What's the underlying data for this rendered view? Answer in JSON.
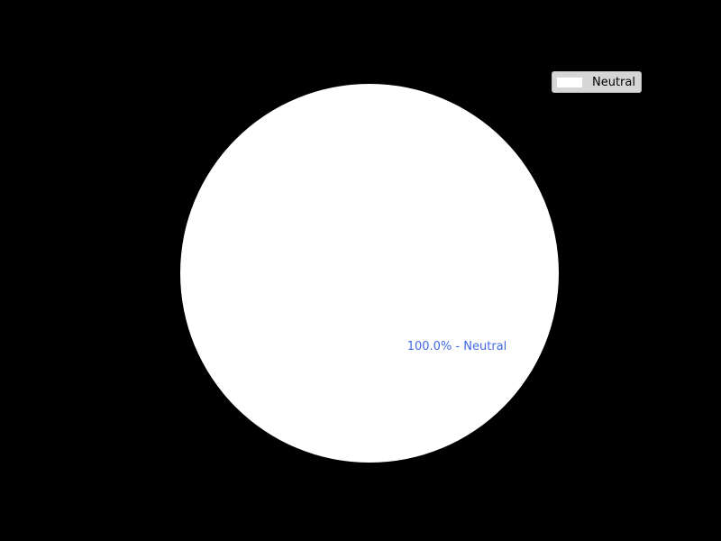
{
  "chart_data": {
    "type": "pie",
    "title": "",
    "slices": [
      {
        "label": "Neutral",
        "value": 100.0,
        "color": "#ffffff",
        "data_label": "100.0% - Neutral"
      }
    ],
    "legend": {
      "placement": "top-right",
      "entries": [
        "Neutral"
      ]
    },
    "data_label_color": "#4169e1",
    "background": "#000000"
  }
}
